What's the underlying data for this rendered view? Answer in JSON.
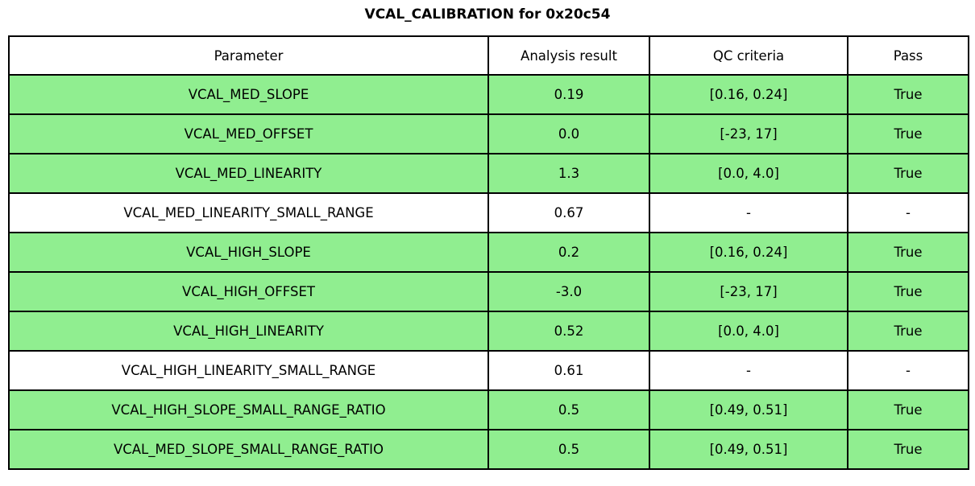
{
  "title": "VCAL_CALIBRATION for 0x20c54",
  "colors": {
    "pass_row_background": "#90EE90",
    "plain_row_background": "#FFFFFF",
    "border": "#000000",
    "text": "#000000"
  },
  "chart_data": {
    "type": "table",
    "title": "VCAL_CALIBRATION for 0x20c54",
    "columns": [
      "Parameter",
      "Analysis result",
      "QC criteria",
      "Pass"
    ],
    "rows": [
      {
        "parameter": "VCAL_MED_SLOPE",
        "analysis_result": "0.19",
        "qc_criteria": "[0.16, 0.24]",
        "pass": "True",
        "highlighted": true
      },
      {
        "parameter": "VCAL_MED_OFFSET",
        "analysis_result": "0.0",
        "qc_criteria": "[-23, 17]",
        "pass": "True",
        "highlighted": true
      },
      {
        "parameter": "VCAL_MED_LINEARITY",
        "analysis_result": "1.3",
        "qc_criteria": "[0.0, 4.0]",
        "pass": "True",
        "highlighted": true
      },
      {
        "parameter": "VCAL_MED_LINEARITY_SMALL_RANGE",
        "analysis_result": "0.67",
        "qc_criteria": "-",
        "pass": "-",
        "highlighted": false
      },
      {
        "parameter": "VCAL_HIGH_SLOPE",
        "analysis_result": "0.2",
        "qc_criteria": "[0.16, 0.24]",
        "pass": "True",
        "highlighted": true
      },
      {
        "parameter": "VCAL_HIGH_OFFSET",
        "analysis_result": "-3.0",
        "qc_criteria": "[-23, 17]",
        "pass": "True",
        "highlighted": true
      },
      {
        "parameter": "VCAL_HIGH_LINEARITY",
        "analysis_result": "0.52",
        "qc_criteria": "[0.0, 4.0]",
        "pass": "True",
        "highlighted": true
      },
      {
        "parameter": "VCAL_HIGH_LINEARITY_SMALL_RANGE",
        "analysis_result": "0.61",
        "qc_criteria": "-",
        "pass": "-",
        "highlighted": false
      },
      {
        "parameter": "VCAL_HIGH_SLOPE_SMALL_RANGE_RATIO",
        "analysis_result": "0.5",
        "qc_criteria": "[0.49, 0.51]",
        "pass": "True",
        "highlighted": true
      },
      {
        "parameter": "VCAL_MED_SLOPE_SMALL_RANGE_RATIO",
        "analysis_result": "0.5",
        "qc_criteria": "[0.49, 0.51]",
        "pass": "True",
        "highlighted": true
      }
    ]
  }
}
